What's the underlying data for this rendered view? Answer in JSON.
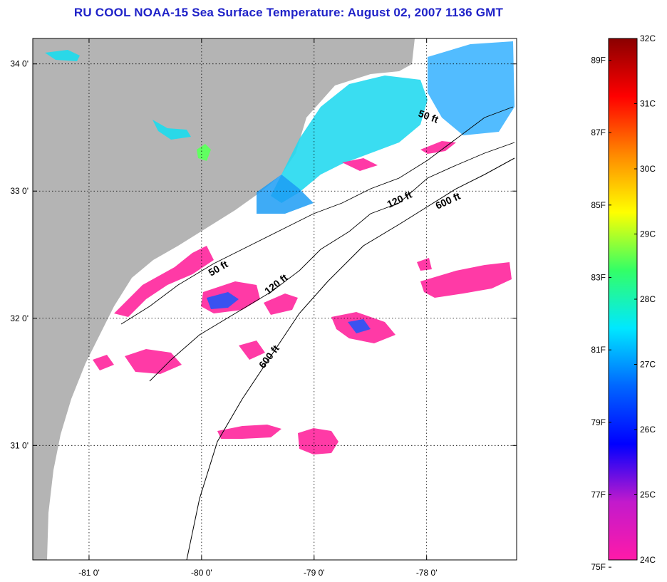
{
  "title": "RU COOL  NOAA-15  Sea Surface Temperature:  August 02, 2007 1136 GMT",
  "map": {
    "lon_range": [
      -81.5,
      -77.2
    ],
    "lat_range": [
      30.1,
      34.2
    ],
    "lon_ticks": [
      {
        "value": -81,
        "label": "-81 0'"
      },
      {
        "value": -80,
        "label": "-80 0'"
      },
      {
        "value": -79,
        "label": "-79 0'"
      },
      {
        "value": -78,
        "label": "-78 0'"
      }
    ],
    "lat_ticks": [
      {
        "value": 34,
        "label": "34 0'"
      },
      {
        "value": 33,
        "label": "33 0'"
      },
      {
        "value": 32,
        "label": "32 0'"
      },
      {
        "value": 31,
        "label": "31 0'"
      }
    ],
    "grid": "dotted",
    "land_color": "#b4b4b4",
    "cloud_color": "#ffffff",
    "isobaths": [
      {
        "label": "50 ft"
      },
      {
        "label": "120 ft"
      },
      {
        "label": "600 ft"
      },
      {
        "label": "50 ft"
      },
      {
        "label": "120 ft"
      },
      {
        "label": "600 ft"
      }
    ]
  },
  "colorbar": {
    "c_labels": [
      "32C",
      "31C",
      "30C",
      "29C",
      "28C",
      "27C",
      "26C",
      "25C",
      "24C"
    ],
    "f_labels": [
      "89F",
      "87F",
      "85F",
      "83F",
      "81F",
      "79F",
      "77F",
      "75F"
    ],
    "gradient": [
      "#ff1aa8",
      "#c21acc",
      "#0000ff",
      "#0066ff",
      "#00e8ff",
      "#33ff66",
      "#ffff00",
      "#ff8800",
      "#ff0000",
      "#8a0000"
    ]
  }
}
